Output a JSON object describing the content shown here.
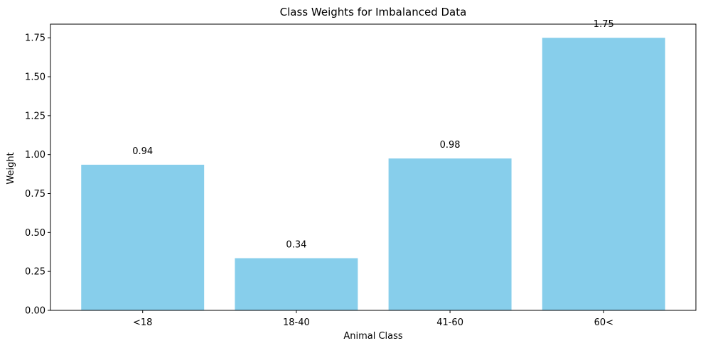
{
  "chart_data": {
    "type": "bar",
    "title": "Class Weights for Imbalanced Data",
    "xlabel": "Animal Class",
    "ylabel": "Weight",
    "categories": [
      "<18",
      "18-40",
      "41-60",
      "60<"
    ],
    "values": [
      0.935,
      0.335,
      0.975,
      1.75
    ],
    "value_labels": [
      "0.94",
      "0.34",
      "0.98",
      "1.75"
    ],
    "ylim": [
      0,
      1.8375
    ],
    "yticks": [
      0.0,
      0.25,
      0.5,
      0.75,
      1.0,
      1.25,
      1.5,
      1.75
    ],
    "ytick_labels": [
      "0.00",
      "0.25",
      "0.50",
      "0.75",
      "1.00",
      "1.25",
      "1.50",
      "1.75"
    ],
    "bar_color": "#87CEEB",
    "grid": false,
    "legend": false
  }
}
